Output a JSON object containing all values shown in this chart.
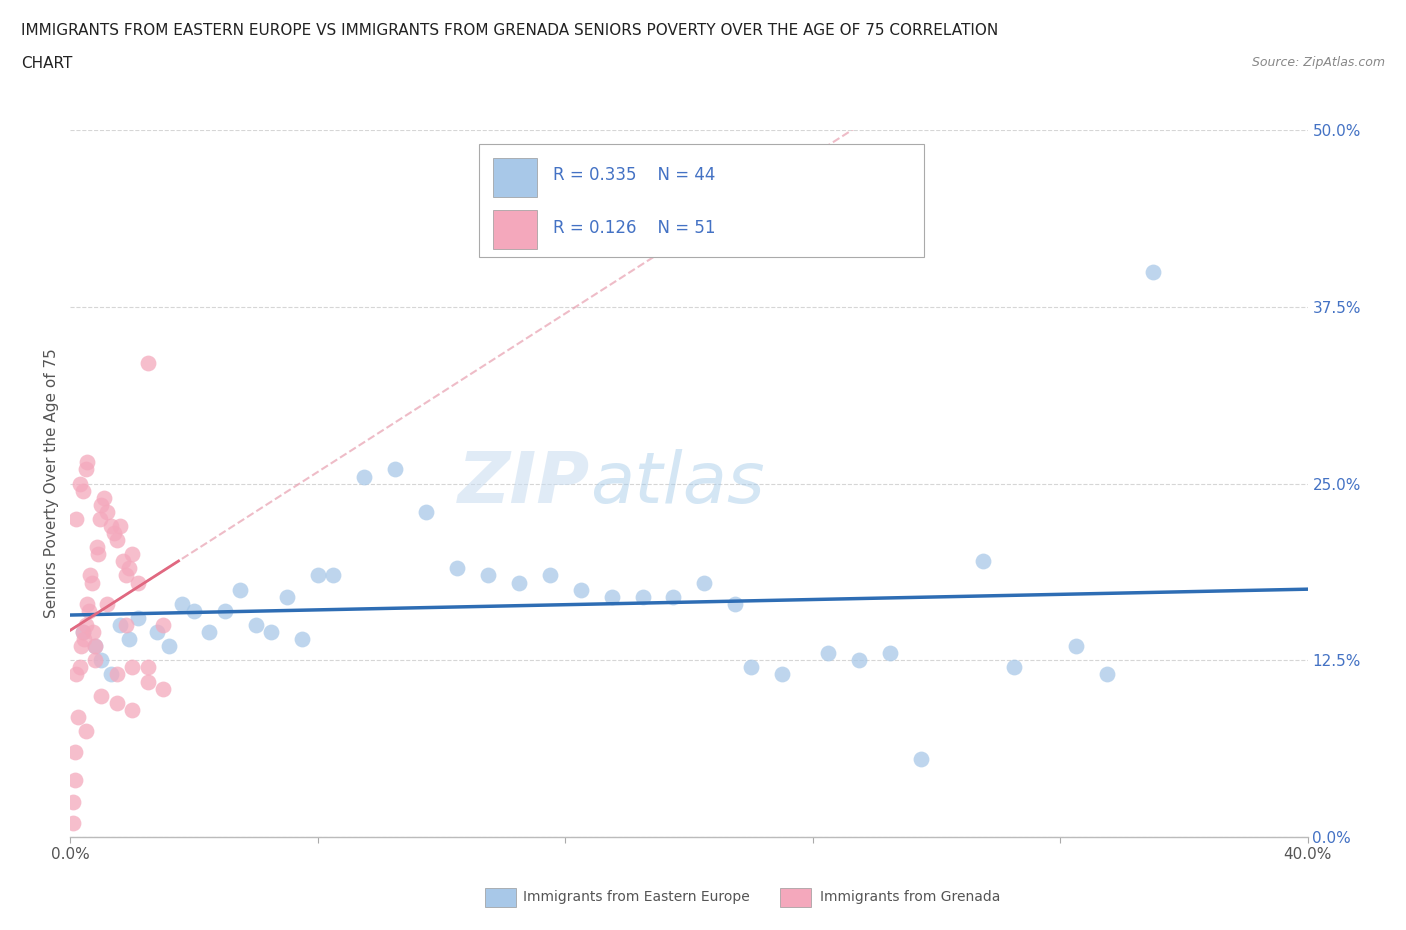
{
  "title_line1": "IMMIGRANTS FROM EASTERN EUROPE VS IMMIGRANTS FROM GRENADA SENIORS POVERTY OVER THE AGE OF 75 CORRELATION",
  "title_line2": "CHART",
  "source": "Source: ZipAtlas.com",
  "ylabel": "Seniors Poverty Over the Age of 75",
  "legend_label1": "Immigrants from Eastern Europe",
  "legend_label2": "Immigrants from Grenada",
  "r1": "0.335",
  "n1": "44",
  "r2": "0.126",
  "n2": "51",
  "color_blue": "#A8C8E8",
  "color_pink": "#F4A8BC",
  "color_blue_line": "#2E6DB4",
  "color_pink_line": "#E06880",
  "color_pink_dashed": "#E8A0B0",
  "watermark_zip": "ZIP",
  "watermark_atlas": "atlas",
  "blue_points": [
    [
      0.4,
      14.5
    ],
    [
      0.8,
      13.5
    ],
    [
      1.0,
      12.5
    ],
    [
      1.3,
      11.5
    ],
    [
      1.6,
      15.0
    ],
    [
      1.9,
      14.0
    ],
    [
      2.2,
      15.5
    ],
    [
      2.8,
      14.5
    ],
    [
      3.2,
      13.5
    ],
    [
      3.6,
      16.5
    ],
    [
      4.0,
      16.0
    ],
    [
      4.5,
      14.5
    ],
    [
      5.0,
      16.0
    ],
    [
      5.5,
      17.5
    ],
    [
      6.0,
      15.0
    ],
    [
      6.5,
      14.5
    ],
    [
      7.0,
      17.0
    ],
    [
      7.5,
      14.0
    ],
    [
      8.0,
      18.5
    ],
    [
      8.5,
      18.5
    ],
    [
      9.5,
      25.5
    ],
    [
      10.5,
      26.0
    ],
    [
      11.5,
      23.0
    ],
    [
      12.5,
      19.0
    ],
    [
      13.5,
      18.5
    ],
    [
      14.5,
      18.0
    ],
    [
      15.5,
      18.5
    ],
    [
      16.5,
      17.5
    ],
    [
      17.5,
      17.0
    ],
    [
      18.5,
      17.0
    ],
    [
      19.5,
      17.0
    ],
    [
      20.5,
      18.0
    ],
    [
      21.5,
      16.5
    ],
    [
      22.0,
      12.0
    ],
    [
      23.0,
      11.5
    ],
    [
      24.5,
      13.0
    ],
    [
      25.5,
      12.5
    ],
    [
      26.5,
      13.0
    ],
    [
      27.5,
      5.5
    ],
    [
      29.5,
      19.5
    ],
    [
      30.5,
      12.0
    ],
    [
      32.5,
      13.5
    ],
    [
      33.5,
      11.5
    ],
    [
      35.0,
      40.0
    ]
  ],
  "pink_points": [
    [
      0.1,
      2.5
    ],
    [
      0.15,
      6.0
    ],
    [
      0.2,
      11.5
    ],
    [
      0.25,
      8.5
    ],
    [
      0.3,
      12.0
    ],
    [
      0.35,
      13.5
    ],
    [
      0.4,
      14.5
    ],
    [
      0.45,
      14.0
    ],
    [
      0.5,
      15.0
    ],
    [
      0.55,
      16.5
    ],
    [
      0.6,
      16.0
    ],
    [
      0.65,
      18.5
    ],
    [
      0.7,
      18.0
    ],
    [
      0.75,
      14.5
    ],
    [
      0.8,
      12.5
    ],
    [
      0.85,
      20.5
    ],
    [
      0.9,
      20.0
    ],
    [
      0.95,
      22.5
    ],
    [
      1.0,
      23.5
    ],
    [
      1.1,
      24.0
    ],
    [
      1.2,
      23.0
    ],
    [
      1.3,
      22.0
    ],
    [
      1.4,
      21.5
    ],
    [
      1.5,
      21.0
    ],
    [
      1.6,
      22.0
    ],
    [
      1.7,
      19.5
    ],
    [
      1.8,
      18.5
    ],
    [
      1.9,
      19.0
    ],
    [
      2.0,
      20.0
    ],
    [
      2.2,
      18.0
    ],
    [
      2.5,
      33.5
    ],
    [
      0.2,
      22.5
    ],
    [
      0.3,
      25.0
    ],
    [
      0.4,
      24.5
    ],
    [
      0.5,
      26.0
    ],
    [
      0.55,
      26.5
    ],
    [
      1.5,
      11.5
    ],
    [
      2.0,
      12.0
    ],
    [
      2.5,
      11.0
    ],
    [
      3.0,
      10.5
    ],
    [
      0.1,
      1.0
    ],
    [
      0.15,
      4.0
    ],
    [
      1.0,
      10.0
    ],
    [
      1.5,
      9.5
    ],
    [
      2.0,
      9.0
    ],
    [
      2.5,
      12.0
    ],
    [
      3.0,
      15.0
    ],
    [
      0.5,
      7.5
    ],
    [
      0.8,
      13.5
    ],
    [
      1.2,
      16.5
    ],
    [
      1.8,
      15.0
    ]
  ],
  "xmin": 0.0,
  "xmax": 40.0,
  "ymin": 0.0,
  "ymax": 50.0,
  "yticks": [
    0.0,
    12.5,
    25.0,
    37.5,
    50.0
  ],
  "xtick_positions": [
    0.0,
    8.0,
    16.0,
    24.0,
    32.0,
    40.0
  ],
  "grid_color": "#CCCCCC",
  "bg_color": "#FFFFFF"
}
